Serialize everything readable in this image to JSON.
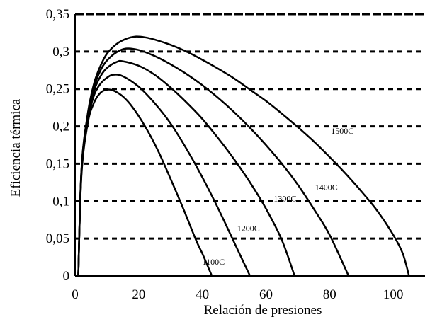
{
  "chart_data": {
    "type": "line",
    "xlabel": "Relación de presiones",
    "ylabel": "Eficiencia térmica",
    "xlim": [
      0,
      110
    ],
    "ylim": [
      0,
      0.35
    ],
    "x_ticks": [
      {
        "value": 0,
        "label": "0"
      },
      {
        "value": 20,
        "label": "20"
      },
      {
        "value": 40,
        "label": "40"
      },
      {
        "value": 60,
        "label": "60"
      },
      {
        "value": 80,
        "label": "80"
      },
      {
        "value": 100,
        "label": "100"
      }
    ],
    "y_ticks": [
      {
        "value": 0,
        "label": "0"
      },
      {
        "value": 0.05,
        "label": "0,05"
      },
      {
        "value": 0.1,
        "label": "0,1"
      },
      {
        "value": 0.15,
        "label": "0,15"
      },
      {
        "value": 0.2,
        "label": "0,2"
      },
      {
        "value": 0.25,
        "label": "0,25"
      },
      {
        "value": 0.3,
        "label": "0,3"
      },
      {
        "value": 0.35,
        "label": "0,35"
      }
    ],
    "grid": "horizontal dotted",
    "series": [
      {
        "name": "1100C",
        "x": [
          1,
          2,
          4,
          6,
          8,
          10,
          12,
          15,
          18,
          22,
          26,
          30,
          34,
          38,
          40,
          42,
          43
        ],
        "y": [
          0,
          0.135,
          0.205,
          0.232,
          0.245,
          0.249,
          0.248,
          0.24,
          0.226,
          0.2,
          0.168,
          0.13,
          0.09,
          0.048,
          0.03,
          0.01,
          0
        ]
      },
      {
        "name": "1200C",
        "x": [
          1,
          2,
          4,
          6,
          8,
          10,
          12,
          15,
          20,
          25,
          30,
          35,
          40,
          45,
          50,
          53,
          55
        ],
        "y": [
          0,
          0.138,
          0.208,
          0.242,
          0.257,
          0.265,
          0.269,
          0.267,
          0.253,
          0.231,
          0.204,
          0.17,
          0.132,
          0.09,
          0.045,
          0.018,
          0
        ]
      },
      {
        "name": "1300C",
        "x": [
          1,
          2,
          4,
          6,
          8,
          10,
          13,
          15,
          20,
          25,
          30,
          35,
          40,
          45,
          50,
          55,
          60,
          65,
          69
        ],
        "y": [
          0,
          0.14,
          0.212,
          0.248,
          0.267,
          0.278,
          0.286,
          0.287,
          0.281,
          0.269,
          0.252,
          0.232,
          0.21,
          0.184,
          0.156,
          0.125,
          0.09,
          0.048,
          0
        ]
      },
      {
        "name": "1400C",
        "x": [
          1,
          2,
          4,
          6,
          8,
          10,
          13,
          16,
          20,
          25,
          30,
          35,
          40,
          45,
          50,
          55,
          60,
          65,
          70,
          75,
          80,
          86
        ],
        "y": [
          0,
          0.142,
          0.215,
          0.253,
          0.275,
          0.288,
          0.299,
          0.304,
          0.302,
          0.294,
          0.283,
          0.27,
          0.255,
          0.238,
          0.219,
          0.198,
          0.175,
          0.15,
          0.122,
          0.09,
          0.055,
          0
        ]
      },
      {
        "name": "1500C",
        "x": [
          1,
          2,
          4,
          6,
          8,
          10,
          13,
          16,
          19,
          22,
          25,
          30,
          35,
          40,
          45,
          50,
          55,
          60,
          65,
          70,
          75,
          80,
          85,
          90,
          95,
          100,
          103,
          105
        ],
        "y": [
          0,
          0.143,
          0.218,
          0.258,
          0.281,
          0.297,
          0.31,
          0.317,
          0.32,
          0.319,
          0.316,
          0.309,
          0.3,
          0.289,
          0.277,
          0.264,
          0.249,
          0.234,
          0.217,
          0.199,
          0.18,
          0.159,
          0.137,
          0.113,
          0.087,
          0.055,
          0.03,
          0
        ]
      }
    ]
  }
}
